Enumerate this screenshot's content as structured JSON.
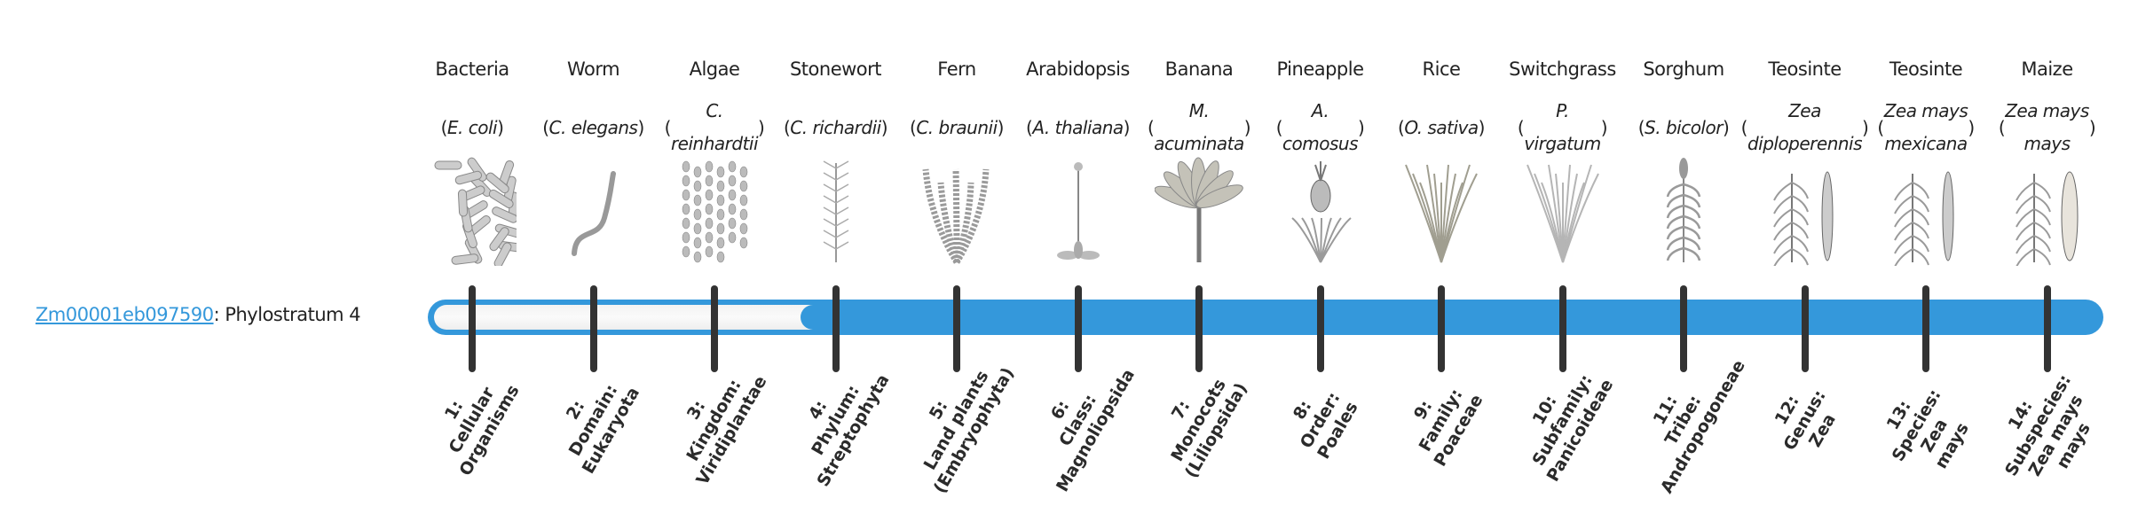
{
  "gene": {
    "id": "Zm00001eb097590",
    "separator": ":",
    "label": "Phylostratum 4",
    "stratum": 4
  },
  "colors": {
    "accent": "#3498db",
    "tick": "#333333",
    "empty": "#f3f3f3"
  },
  "organisms": [
    {
      "name": "Bacteria",
      "species": "E. coli",
      "icon": "bacteria-icon"
    },
    {
      "name": "Worm",
      "species": "C. elegans",
      "icon": "worm-icon"
    },
    {
      "name": "Algae",
      "species": "C.\nreinhardtii",
      "icon": "algae-icon"
    },
    {
      "name": "Stonewort",
      "species": "C. richardii",
      "icon": "stonewort-icon"
    },
    {
      "name": "Fern",
      "species": "C. braunii",
      "icon": "fern-icon"
    },
    {
      "name": "Arabidopsis",
      "species": "A. thaliana",
      "icon": "arabidopsis-icon"
    },
    {
      "name": "Banana",
      "species": "M.\nacuminata",
      "icon": "banana-icon"
    },
    {
      "name": "Pineapple",
      "species": "A.\ncomosus",
      "icon": "pineapple-icon"
    },
    {
      "name": "Rice",
      "species": "O. sativa",
      "icon": "rice-icon"
    },
    {
      "name": "Switchgrass",
      "species": "P.\nvirgatum",
      "icon": "switchgrass-icon"
    },
    {
      "name": "Sorghum",
      "species": "S. bicolor",
      "icon": "sorghum-icon"
    },
    {
      "name": "Teosinte",
      "species": "Zea\ndiploperennis",
      "icon": "teosinte-icon"
    },
    {
      "name": "Teosinte",
      "species": "Zea mays\nmexicana",
      "icon": "teosinte-icon"
    },
    {
      "name": "Maize",
      "species": "Zea mays\nmays",
      "icon": "maize-icon"
    }
  ],
  "strata": [
    "1:\nCellular\nOrganisms",
    "2:\nDomain:\nEukaryota",
    "3:\nKingdom:\nViridiplantae",
    "4:\nPhylum:\nStreptophyta",
    "5:\nLand plants\n(Embryophyta)",
    "6:\nClass:\nMagnoliopsida",
    "7:\nMonocots\n(Liliopsida)",
    "8:\nOrder:\nPoales",
    "9:\nFamily:\nPoaceae",
    "10:\nSubfamily:\nPanicoideae",
    "11:\nTribe:\nAndropogoneae",
    "12:\nGenus:\nZea",
    "13:\nSpecies:\nZea\nmays",
    "14:\nSubspecies:\nZea mays\nmays"
  ]
}
